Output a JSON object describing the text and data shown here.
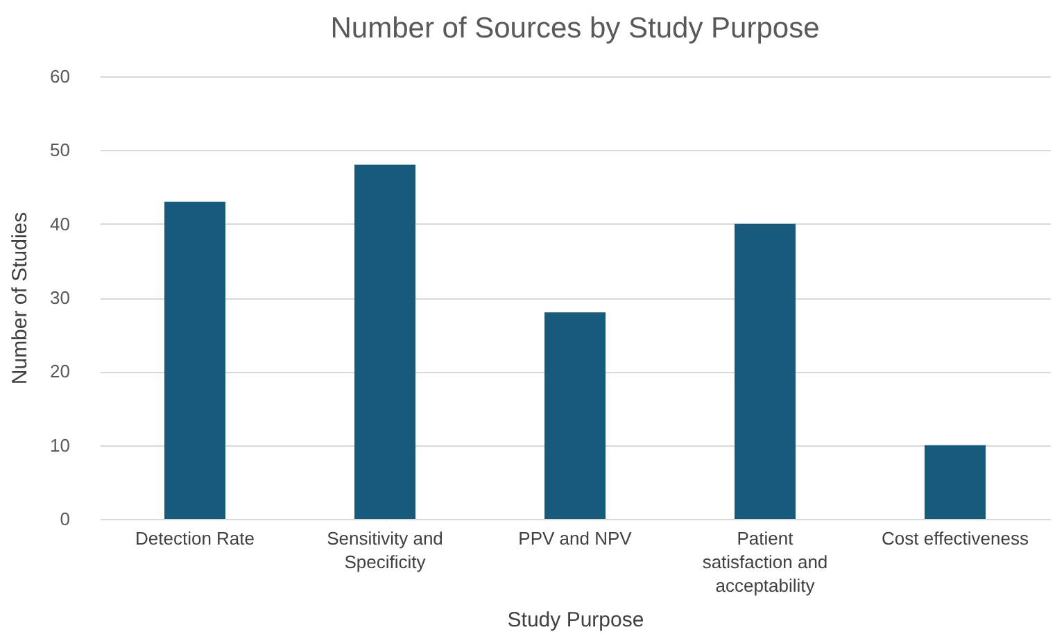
{
  "chart_data": {
    "type": "bar",
    "title": "Number of Sources by Study Purpose",
    "xlabel": "Study Purpose",
    "ylabel": "Number of Studies",
    "categories": [
      "Detection Rate",
      "Sensitivity and Specificity",
      "PPV and NPV",
      "Patient satisfaction and acceptability",
      "Cost effectiveness"
    ],
    "values": [
      43,
      48,
      28,
      40,
      10
    ],
    "color": "#175a7b",
    "ylim": [
      0,
      60
    ],
    "yticks": [
      0,
      10,
      20,
      30,
      40,
      50,
      60
    ],
    "grid": "y"
  }
}
